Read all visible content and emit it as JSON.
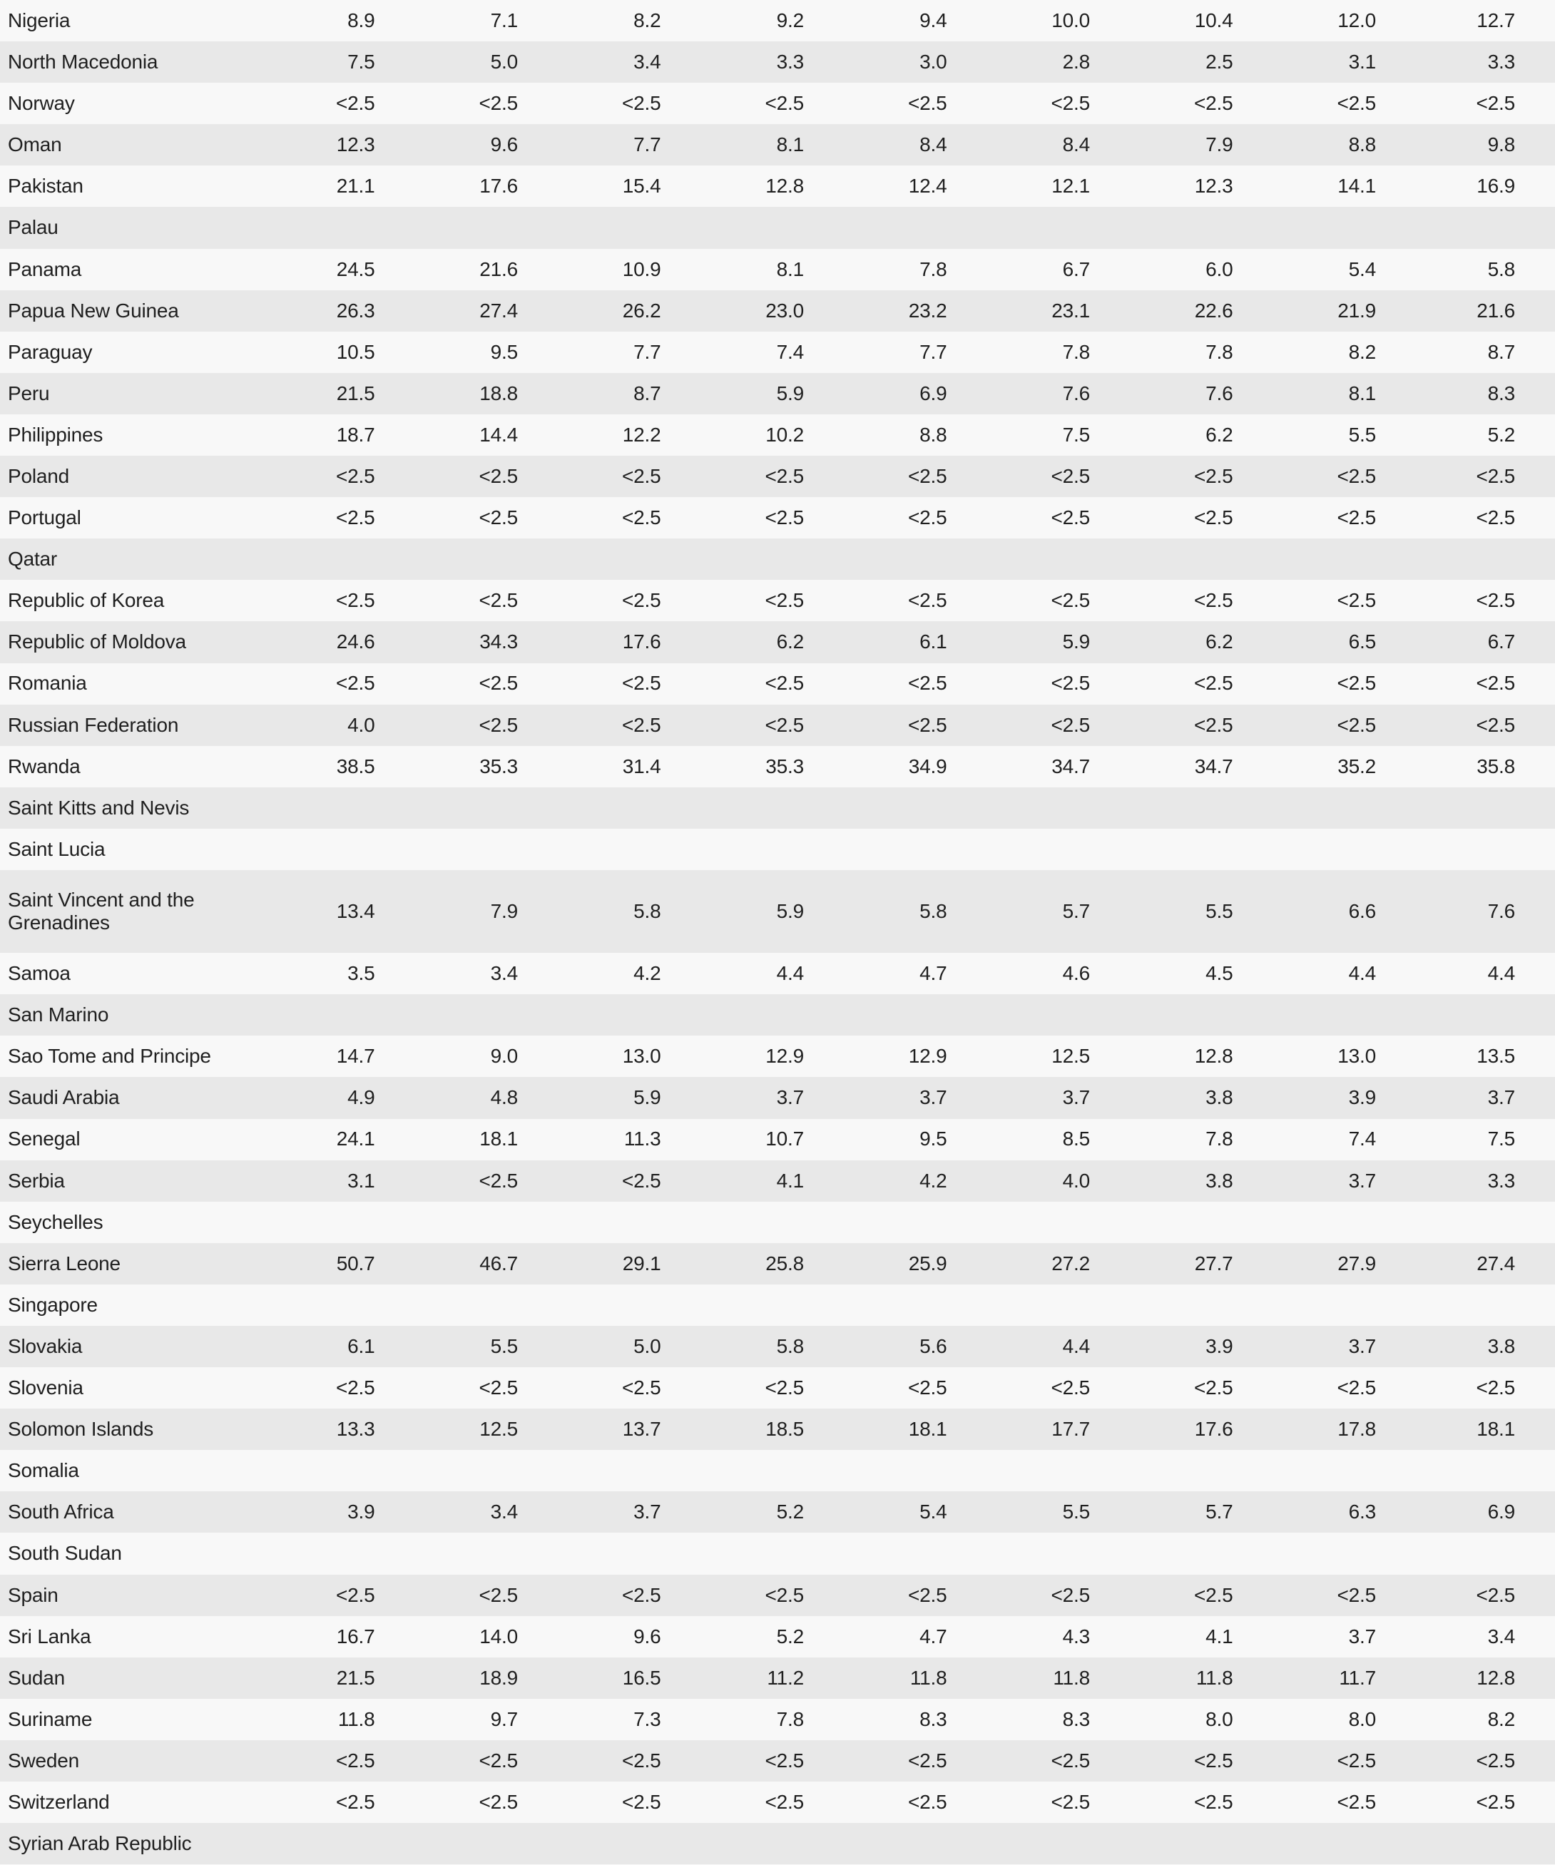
{
  "colors": {
    "row_light": "#f8f8f8",
    "row_dark": "#e8e8e8",
    "text": "#1f1f1f"
  },
  "table": {
    "rows": [
      {
        "name": "Nigeria",
        "tall": false,
        "values": [
          "8.9",
          "7.1",
          "8.2",
          "9.2",
          "9.4",
          "10.0",
          "10.4",
          "12.0",
          "12.7"
        ]
      },
      {
        "name": "North Macedonia",
        "tall": false,
        "values": [
          "7.5",
          "5.0",
          "3.4",
          "3.3",
          "3.0",
          "2.8",
          "2.5",
          "3.1",
          "3.3"
        ]
      },
      {
        "name": "Norway",
        "tall": false,
        "values": [
          "<2.5",
          "<2.5",
          "<2.5",
          "<2.5",
          "<2.5",
          "<2.5",
          "<2.5",
          "<2.5",
          "<2.5"
        ]
      },
      {
        "name": "Oman",
        "tall": false,
        "values": [
          "12.3",
          "9.6",
          "7.7",
          "8.1",
          "8.4",
          "8.4",
          "7.9",
          "8.8",
          "9.8"
        ]
      },
      {
        "name": "Pakistan",
        "tall": false,
        "values": [
          "21.1",
          "17.6",
          "15.4",
          "12.8",
          "12.4",
          "12.1",
          "12.3",
          "14.1",
          "16.9"
        ]
      },
      {
        "name": "Palau",
        "tall": false,
        "values": [
          "",
          "",
          "",
          "",
          "",
          "",
          "",
          "",
          ""
        ]
      },
      {
        "name": "Panama",
        "tall": false,
        "values": [
          "24.5",
          "21.6",
          "10.9",
          "8.1",
          "7.8",
          "6.7",
          "6.0",
          "5.4",
          "5.8"
        ]
      },
      {
        "name": "Papua New Guinea",
        "tall": false,
        "values": [
          "26.3",
          "27.4",
          "26.2",
          "23.0",
          "23.2",
          "23.1",
          "22.6",
          "21.9",
          "21.6"
        ]
      },
      {
        "name": "Paraguay",
        "tall": false,
        "values": [
          "10.5",
          "9.5",
          "7.7",
          "7.4",
          "7.7",
          "7.8",
          "7.8",
          "8.2",
          "8.7"
        ]
      },
      {
        "name": "Peru",
        "tall": false,
        "values": [
          "21.5",
          "18.8",
          "8.7",
          "5.9",
          "6.9",
          "7.6",
          "7.6",
          "8.1",
          "8.3"
        ]
      },
      {
        "name": "Philippines",
        "tall": false,
        "values": [
          "18.7",
          "14.4",
          "12.2",
          "10.2",
          "8.8",
          "7.5",
          "6.2",
          "5.5",
          "5.2"
        ]
      },
      {
        "name": "Poland",
        "tall": false,
        "values": [
          "<2.5",
          "<2.5",
          "<2.5",
          "<2.5",
          "<2.5",
          "<2.5",
          "<2.5",
          "<2.5",
          "<2.5"
        ]
      },
      {
        "name": "Portugal",
        "tall": false,
        "values": [
          "<2.5",
          "<2.5",
          "<2.5",
          "<2.5",
          "<2.5",
          "<2.5",
          "<2.5",
          "<2.5",
          "<2.5"
        ]
      },
      {
        "name": "Qatar",
        "tall": false,
        "values": [
          "",
          "",
          "",
          "",
          "",
          "",
          "",
          "",
          ""
        ]
      },
      {
        "name": "Republic of Korea",
        "tall": false,
        "values": [
          "<2.5",
          "<2.5",
          "<2.5",
          "<2.5",
          "<2.5",
          "<2.5",
          "<2.5",
          "<2.5",
          "<2.5"
        ]
      },
      {
        "name": "Republic of Moldova",
        "tall": false,
        "values": [
          "24.6",
          "34.3",
          "17.6",
          "6.2",
          "6.1",
          "5.9",
          "6.2",
          "6.5",
          "6.7"
        ]
      },
      {
        "name": "Romania",
        "tall": false,
        "values": [
          "<2.5",
          "<2.5",
          "<2.5",
          "<2.5",
          "<2.5",
          "<2.5",
          "<2.5",
          "<2.5",
          "<2.5"
        ]
      },
      {
        "name": "Russian Federation",
        "tall": false,
        "values": [
          "4.0",
          "<2.5",
          "<2.5",
          "<2.5",
          "<2.5",
          "<2.5",
          "<2.5",
          "<2.5",
          "<2.5"
        ]
      },
      {
        "name": "Rwanda",
        "tall": false,
        "values": [
          "38.5",
          "35.3",
          "31.4",
          "35.3",
          "34.9",
          "34.7",
          "34.7",
          "35.2",
          "35.8"
        ]
      },
      {
        "name": "Saint Kitts and Nevis",
        "tall": false,
        "values": [
          "",
          "",
          "",
          "",
          "",
          "",
          "",
          "",
          ""
        ]
      },
      {
        "name": "Saint Lucia",
        "tall": false,
        "values": [
          "",
          "",
          "",
          "",
          "",
          "",
          "",
          "",
          ""
        ]
      },
      {
        "name": "Saint Vincent and the Grenadines",
        "tall": true,
        "values": [
          "13.4",
          "7.9",
          "5.8",
          "5.9",
          "5.8",
          "5.7",
          "5.5",
          "6.6",
          "7.6"
        ]
      },
      {
        "name": "Samoa",
        "tall": false,
        "values": [
          "3.5",
          "3.4",
          "4.2",
          "4.4",
          "4.7",
          "4.6",
          "4.5",
          "4.4",
          "4.4"
        ]
      },
      {
        "name": "San Marino",
        "tall": false,
        "values": [
          "",
          "",
          "",
          "",
          "",
          "",
          "",
          "",
          ""
        ]
      },
      {
        "name": "Sao Tome and Principe",
        "tall": false,
        "values": [
          "14.7",
          "9.0",
          "13.0",
          "12.9",
          "12.9",
          "12.5",
          "12.8",
          "13.0",
          "13.5"
        ]
      },
      {
        "name": "Saudi Arabia",
        "tall": false,
        "values": [
          "4.9",
          "4.8",
          "5.9",
          "3.7",
          "3.7",
          "3.7",
          "3.8",
          "3.9",
          "3.7"
        ]
      },
      {
        "name": "Senegal",
        "tall": false,
        "values": [
          "24.1",
          "18.1",
          "11.3",
          "10.7",
          "9.5",
          "8.5",
          "7.8",
          "7.4",
          "7.5"
        ]
      },
      {
        "name": "Serbia",
        "tall": false,
        "values": [
          "3.1",
          "<2.5",
          "<2.5",
          "4.1",
          "4.2",
          "4.0",
          "3.8",
          "3.7",
          "3.3"
        ]
      },
      {
        "name": "Seychelles",
        "tall": false,
        "values": [
          "",
          "",
          "",
          "",
          "",
          "",
          "",
          "",
          ""
        ]
      },
      {
        "name": "Sierra Leone",
        "tall": false,
        "values": [
          "50.7",
          "46.7",
          "29.1",
          "25.8",
          "25.9",
          "27.2",
          "27.7",
          "27.9",
          "27.4"
        ]
      },
      {
        "name": "Singapore",
        "tall": false,
        "values": [
          "",
          "",
          "",
          "",
          "",
          "",
          "",
          "",
          ""
        ]
      },
      {
        "name": "Slovakia",
        "tall": false,
        "values": [
          "6.1",
          "5.5",
          "5.0",
          "5.8",
          "5.6",
          "4.4",
          "3.9",
          "3.7",
          "3.8"
        ]
      },
      {
        "name": "Slovenia",
        "tall": false,
        "values": [
          "<2.5",
          "<2.5",
          "<2.5",
          "<2.5",
          "<2.5",
          "<2.5",
          "<2.5",
          "<2.5",
          "<2.5"
        ]
      },
      {
        "name": "Solomon Islands",
        "tall": false,
        "values": [
          "13.3",
          "12.5",
          "13.7",
          "18.5",
          "18.1",
          "17.7",
          "17.6",
          "17.8",
          "18.1"
        ]
      },
      {
        "name": "Somalia",
        "tall": false,
        "values": [
          "",
          "",
          "",
          "",
          "",
          "",
          "",
          "",
          ""
        ]
      },
      {
        "name": "South Africa",
        "tall": false,
        "values": [
          "3.9",
          "3.4",
          "3.7",
          "5.2",
          "5.4",
          "5.5",
          "5.7",
          "6.3",
          "6.9"
        ]
      },
      {
        "name": "South Sudan",
        "tall": false,
        "values": [
          "",
          "",
          "",
          "",
          "",
          "",
          "",
          "",
          ""
        ]
      },
      {
        "name": "Spain",
        "tall": false,
        "values": [
          "<2.5",
          "<2.5",
          "<2.5",
          "<2.5",
          "<2.5",
          "<2.5",
          "<2.5",
          "<2.5",
          "<2.5"
        ]
      },
      {
        "name": "Sri Lanka",
        "tall": false,
        "values": [
          "16.7",
          "14.0",
          "9.6",
          "5.2",
          "4.7",
          "4.3",
          "4.1",
          "3.7",
          "3.4"
        ]
      },
      {
        "name": "Sudan",
        "tall": false,
        "values": [
          "21.5",
          "18.9",
          "16.5",
          "11.2",
          "11.8",
          "11.8",
          "11.8",
          "11.7",
          "12.8"
        ]
      },
      {
        "name": "Suriname",
        "tall": false,
        "values": [
          "11.8",
          "9.7",
          "7.3",
          "7.8",
          "8.3",
          "8.3",
          "8.0",
          "8.0",
          "8.2"
        ]
      },
      {
        "name": "Sweden",
        "tall": false,
        "values": [
          "<2.5",
          "<2.5",
          "<2.5",
          "<2.5",
          "<2.5",
          "<2.5",
          "<2.5",
          "<2.5",
          "<2.5"
        ]
      },
      {
        "name": "Switzerland",
        "tall": false,
        "values": [
          "<2.5",
          "<2.5",
          "<2.5",
          "<2.5",
          "<2.5",
          "<2.5",
          "<2.5",
          "<2.5",
          "<2.5"
        ]
      },
      {
        "name": "Syrian Arab Republic",
        "tall": false,
        "values": [
          "",
          "",
          "",
          "",
          "",
          "",
          "",
          "",
          ""
        ]
      }
    ]
  }
}
